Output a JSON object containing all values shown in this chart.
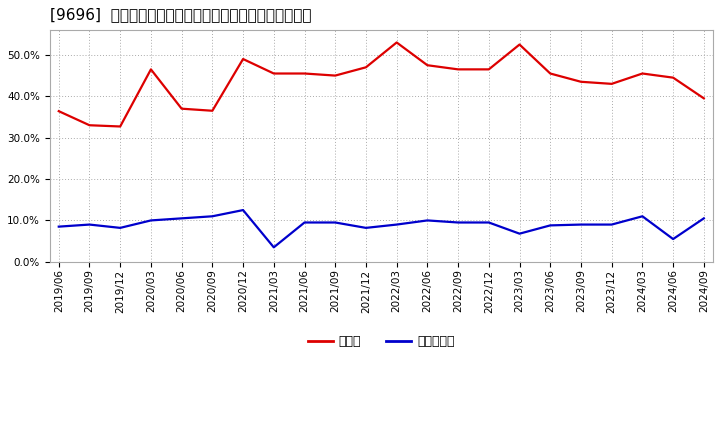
{
  "title": "[9696]  現頑金、有利子負債の総資産に対する比率の推移",
  "x_labels": [
    "2019/06",
    "2019/09",
    "2019/12",
    "2020/03",
    "2020/06",
    "2020/09",
    "2020/12",
    "2021/03",
    "2021/06",
    "2021/09",
    "2021/12",
    "2022/03",
    "2022/06",
    "2022/09",
    "2022/12",
    "2023/03",
    "2023/06",
    "2023/09",
    "2023/12",
    "2024/03",
    "2024/06",
    "2024/09"
  ],
  "cash_values": [
    0.364,
    0.33,
    0.327,
    0.465,
    0.37,
    0.365,
    0.49,
    0.455,
    0.455,
    0.45,
    0.47,
    0.53,
    0.475,
    0.465,
    0.465,
    0.525,
    0.455,
    0.435,
    0.43,
    0.455,
    0.445,
    0.395
  ],
  "debt_values": [
    0.085,
    0.09,
    0.082,
    0.1,
    0.105,
    0.11,
    0.125,
    0.035,
    0.095,
    0.095,
    0.082,
    0.09,
    0.1,
    0.095,
    0.095,
    0.068,
    0.088,
    0.09,
    0.09,
    0.11,
    0.055,
    0.105
  ],
  "cash_color": "#dd0000",
  "debt_color": "#0000cc",
  "background_color": "#ffffff",
  "plot_bg_color": "#ffffff",
  "grid_color": "#aaaaaa",
  "ylim": [
    0.0,
    0.56
  ],
  "yticks": [
    0.0,
    0.1,
    0.2,
    0.3,
    0.4,
    0.5
  ],
  "legend_cash": "現頑金",
  "legend_debt": "有利子負債",
  "title_fontsize": 11,
  "label_fontsize": 7.5,
  "legend_fontsize": 9
}
